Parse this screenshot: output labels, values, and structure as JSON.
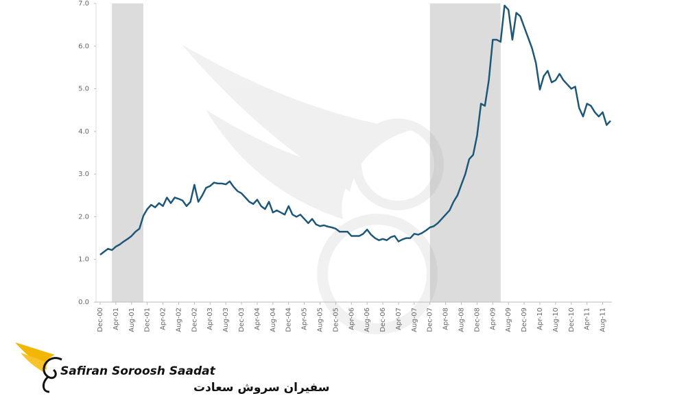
{
  "chart_data": {
    "type": "line",
    "categories": [
      "Dec-00",
      null,
      null,
      null,
      "Apr-01",
      null,
      null,
      null,
      "Aug-01",
      null,
      null,
      null,
      "Dec-01",
      null,
      null,
      null,
      "Apr-02",
      null,
      null,
      null,
      "Aug-02",
      null,
      null,
      null,
      "Dec-02",
      null,
      null,
      null,
      "Apr-03",
      null,
      null,
      null,
      "Aug-03",
      null,
      null,
      null,
      "Dec-03",
      null,
      null,
      null,
      "Apr-04",
      null,
      null,
      null,
      "Aug-04",
      null,
      null,
      null,
      "Dec-04",
      null,
      null,
      null,
      "Apr-05",
      null,
      null,
      null,
      "Aug-05",
      null,
      null,
      null,
      "Dec-05",
      null,
      null,
      null,
      "Apr-06",
      null,
      null,
      null,
      "Aug-06",
      null,
      null,
      null,
      "Dec-06",
      null,
      null,
      null,
      "Apr-07",
      null,
      null,
      null,
      "Aug-07",
      null,
      null,
      null,
      "Dec-07",
      null,
      null,
      null,
      "Apr-08",
      null,
      null,
      null,
      "Aug-08",
      null,
      null,
      null,
      "Dec-08",
      null,
      null,
      null,
      "Apr-09",
      null,
      null,
      null,
      "Aug-09",
      null,
      null,
      null,
      "Dec-09",
      null,
      null,
      null,
      "Apr-10",
      null,
      null,
      null,
      "Aug-10",
      null,
      null,
      null,
      "Dec-10",
      null,
      null,
      null,
      "Apr-11",
      null,
      null,
      null,
      "Aug-11",
      null,
      null
    ],
    "values": [
      1.11,
      1.18,
      1.25,
      1.22,
      1.3,
      1.35,
      1.42,
      1.48,
      1.55,
      1.65,
      1.72,
      2.02,
      2.18,
      2.28,
      2.22,
      2.32,
      2.25,
      2.45,
      2.32,
      2.45,
      2.42,
      2.38,
      2.25,
      2.35,
      2.75,
      2.35,
      2.5,
      2.68,
      2.72,
      2.8,
      2.78,
      2.78,
      2.76,
      2.83,
      2.7,
      2.6,
      2.55,
      2.45,
      2.35,
      2.3,
      2.4,
      2.25,
      2.18,
      2.35,
      2.1,
      2.15,
      2.1,
      2.05,
      2.25,
      2.05,
      2.0,
      2.05,
      1.95,
      1.85,
      1.95,
      1.82,
      1.78,
      1.8,
      1.77,
      1.75,
      1.72,
      1.65,
      1.65,
      1.65,
      1.55,
      1.55,
      1.55,
      1.6,
      1.7,
      1.58,
      1.5,
      1.45,
      1.48,
      1.45,
      1.52,
      1.55,
      1.42,
      1.47,
      1.5,
      1.5,
      1.6,
      1.58,
      1.62,
      1.68,
      1.75,
      1.78,
      1.85,
      1.95,
      2.05,
      2.15,
      2.35,
      2.5,
      2.75,
      3.0,
      3.35,
      3.45,
      3.9,
      4.65,
      4.6,
      5.2,
      6.15,
      6.15,
      6.1,
      6.95,
      6.85,
      6.15,
      6.78,
      6.7,
      6.45,
      6.2,
      5.95,
      5.6,
      4.98,
      5.3,
      5.42,
      5.15,
      5.2,
      5.35,
      5.2,
      5.1,
      5.0,
      5.05,
      4.55,
      4.35,
      4.65,
      4.6,
      4.45,
      4.35,
      4.45,
      4.15,
      4.25
    ],
    "color": "#1d5777",
    "shaded_ranges": [
      [
        3,
        11
      ],
      [
        84,
        102
      ]
    ],
    "shade_color": "#dcdcdc",
    "ylim": [
      0,
      7
    ],
    "yticks": [
      {
        "value": 0,
        "label": "0.0"
      },
      {
        "value": 1,
        "label": "1.0"
      },
      {
        "value": 2,
        "label": "2.0"
      },
      {
        "value": 3,
        "label": "3.0"
      },
      {
        "value": 4,
        "label": "4.0"
      },
      {
        "value": 5,
        "label": "5.0"
      },
      {
        "value": 6,
        "label": "6.0"
      },
      {
        "value": 7,
        "label": "7.0"
      }
    ],
    "grid": false
  },
  "watermark": {
    "name": "Safiran Soroosh Saadat",
    "name_fa": "سفیران سروش سعادت"
  }
}
